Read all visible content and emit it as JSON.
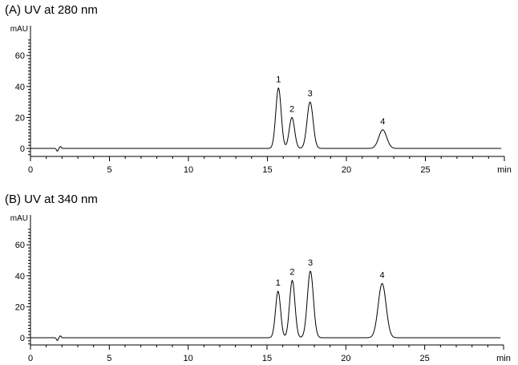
{
  "chart_data": [
    {
      "type": "line",
      "title": "(A) UV at 280 nm",
      "xlabel": "min",
      "ylabel": "mAU",
      "xlim": [
        0,
        30
      ],
      "ylim": [
        -5,
        70
      ],
      "xticks": [
        0,
        5,
        10,
        15,
        20,
        25
      ],
      "yticks": [
        0,
        20,
        40,
        60
      ],
      "grid": false,
      "line_color": "#000000",
      "peaks": [
        {
          "label": "1",
          "rt": 15.7,
          "height": 39,
          "width": 0.17
        },
        {
          "label": "2",
          "rt": 16.55,
          "height": 20,
          "width": 0.17
        },
        {
          "label": "3",
          "rt": 17.7,
          "height": 30,
          "width": 0.19
        },
        {
          "label": "4",
          "rt": 22.3,
          "height": 12,
          "width": 0.25
        }
      ]
    },
    {
      "type": "line",
      "title": "(B) UV at 340 nm",
      "xlabel": "min",
      "ylabel": "mAU",
      "xlim": [
        0,
        30
      ],
      "ylim": [
        -5,
        70
      ],
      "xticks": [
        0,
        5,
        10,
        15,
        20,
        25
      ],
      "yticks": [
        0,
        20,
        40,
        60
      ],
      "grid": false,
      "line_color": "#000000",
      "peaks": [
        {
          "label": "1",
          "rt": 15.7,
          "height": 30,
          "width": 0.16
        },
        {
          "label": "2",
          "rt": 16.6,
          "height": 37,
          "width": 0.17
        },
        {
          "label": "3",
          "rt": 17.75,
          "height": 43,
          "width": 0.19
        },
        {
          "label": "4",
          "rt": 22.3,
          "height": 35,
          "width": 0.25
        }
      ]
    }
  ]
}
